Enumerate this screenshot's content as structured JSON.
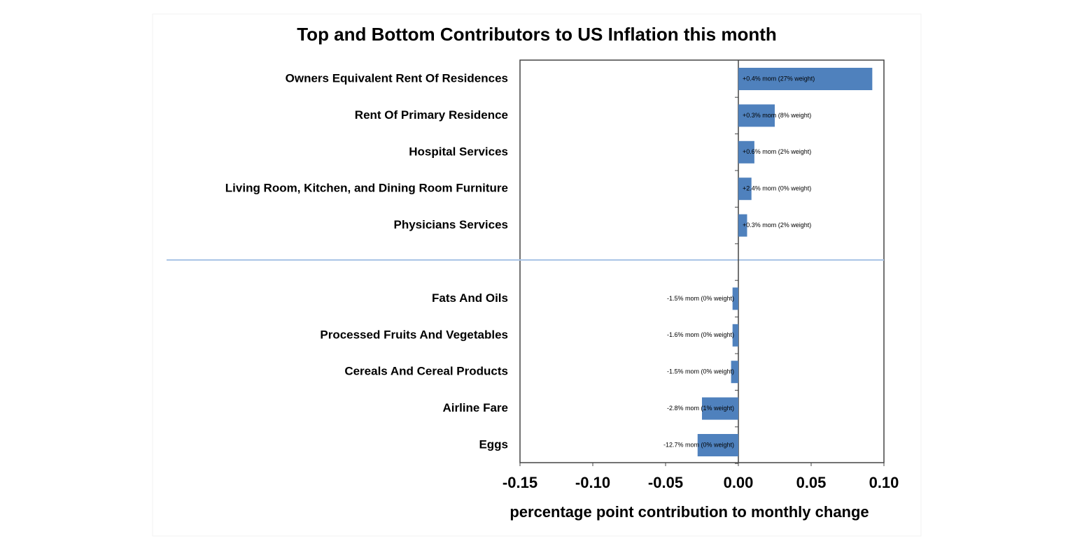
{
  "chart_data": {
    "type": "bar",
    "orientation": "horizontal",
    "title": "Top and Bottom Contributors to US Inflation this month",
    "xlabel": "percentage point contribution to monthly change",
    "categories": [
      "Owners Equivalent Rent Of Residences",
      "Rent Of Primary Residence",
      "Hospital Services",
      "Living Room, Kitchen, and Dining Room Furniture",
      "Physicians Services",
      null,
      "Fats And Oils",
      "Processed Fruits And Vegetables",
      "Cereals And Cereal Products",
      "Airline Fare",
      "Eggs"
    ],
    "values": [
      0.092,
      0.025,
      0.011,
      0.009,
      0.006,
      null,
      -0.004,
      -0.004,
      -0.005,
      -0.025,
      -0.028
    ],
    "annotations": [
      "+0.4% mom (27% weight)",
      "+0.3% mom (8% weight)",
      "+0.6% mom (2% weight)",
      "+2.4% mom (0% weight)",
      "+0.3% mom (2% weight)",
      null,
      "-1.5% mom (0% weight)",
      "-1.6% mom (0% weight)",
      "-1.5% mom (0% weight)",
      "-2.8% mom (1% weight)",
      "-12.7% mom (0% weight)"
    ],
    "color": "#4f81bd",
    "xlim": [
      -0.15,
      0.1
    ],
    "xticks": [
      -0.15,
      {
        "value": -0.1,
        "label": "-0.10"
      },
      -0.05,
      {
        "value": 0,
        "label": "0.00"
      },
      0.05,
      {
        "value": 0.1,
        "label": "0.10"
      }
    ]
  }
}
